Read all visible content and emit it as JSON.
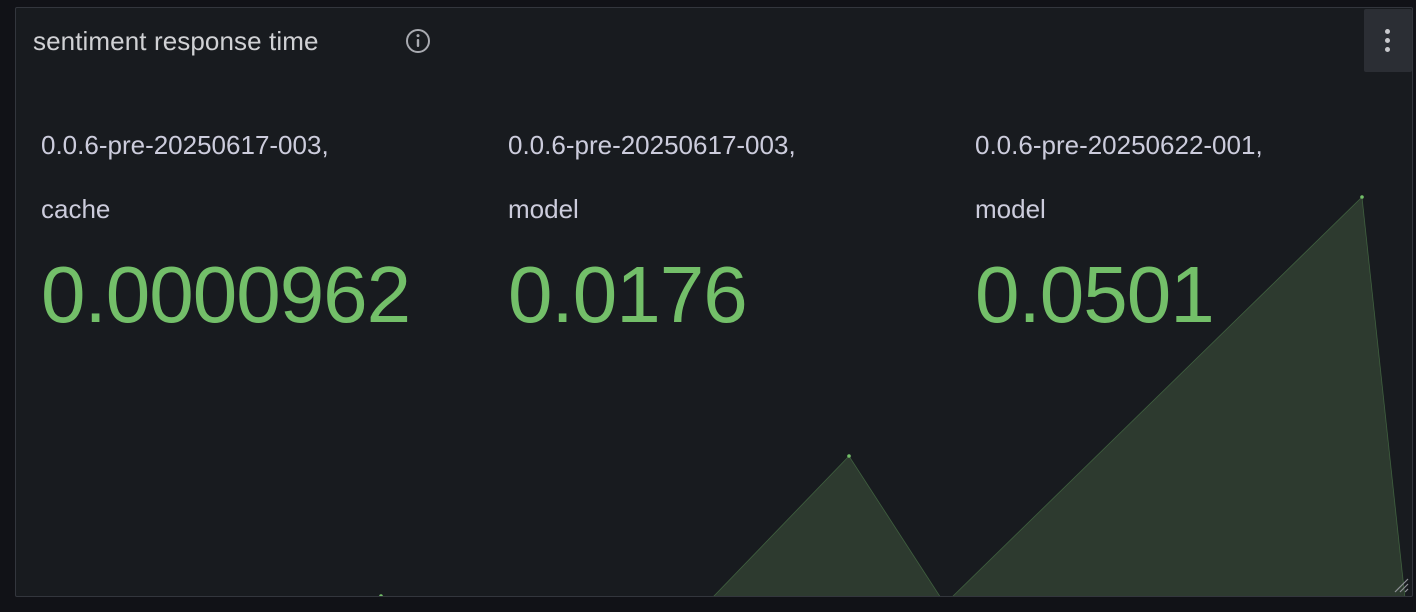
{
  "panel": {
    "title": "sentiment response time",
    "info_icon": "info-circle-icon",
    "menu_icon": "kebab-menu-icon",
    "resize_icon": "resize-handle-icon"
  },
  "stats": [
    {
      "label_line1": "0.0.6-pre-20250617-003,",
      "label_line2": "cache",
      "value": "0.0000962"
    },
    {
      "label_line1": "0.0.6-pre-20250617-003,",
      "label_line2": "model",
      "value": "0.0176"
    },
    {
      "label_line1": "0.0.6-pre-20250622-001,",
      "label_line2": "model",
      "value": "0.0501"
    }
  ],
  "colors": {
    "background": "#111217",
    "panel": "#181b1f",
    "value": "#73bf69",
    "sparkline_fill": "#2d3a2f"
  }
}
